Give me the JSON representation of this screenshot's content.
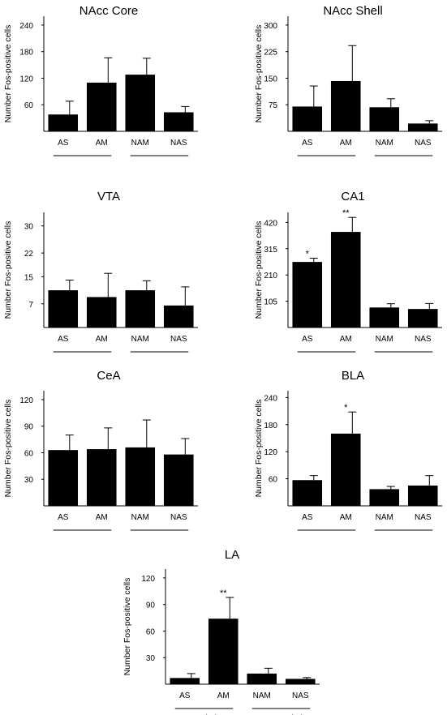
{
  "ylabel": "Number Fos-positive cells",
  "group_labels": [
    "Associative",
    "Non-associative"
  ],
  "chart_data": [
    {
      "type": "bar",
      "title": "NAcc Core",
      "ylabel": "Number Fos-positive cells",
      "categories": [
        "AS",
        "AM",
        "NAM",
        "NAS"
      ],
      "values": [
        38,
        110,
        128,
        43
      ],
      "errors": [
        30,
        56,
        37,
        13
      ],
      "yticks": [
        60,
        120,
        180,
        240
      ],
      "ylim": [
        0,
        260
      ],
      "annotations": [
        "",
        "",
        "",
        ""
      ],
      "grid": false
    },
    {
      "type": "bar",
      "title": "NAcc Shell",
      "ylabel": "Number Fos-positive cells",
      "categories": [
        "AS",
        "AM",
        "NAM",
        "NAS"
      ],
      "values": [
        70,
        142,
        68,
        22
      ],
      "errors": [
        58,
        100,
        24,
        8
      ],
      "yticks": [
        75,
        150,
        225,
        300
      ],
      "ylim": [
        0,
        325
      ],
      "annotations": [
        "",
        "",
        "",
        ""
      ],
      "grid": false
    },
    {
      "type": "bar",
      "title": "VTA",
      "ylabel": "Number Fos-positive cells",
      "categories": [
        "AS",
        "AM",
        "NAM",
        "NAS"
      ],
      "values": [
        11,
        9,
        11,
        6.5
      ],
      "errors": [
        3,
        7,
        2.8,
        5.5
      ],
      "yticks": [
        7,
        15,
        22,
        30
      ],
      "ylim": [
        0,
        34
      ],
      "annotations": [
        "",
        "",
        "",
        ""
      ],
      "grid": false
    },
    {
      "type": "bar",
      "title": "CA1",
      "ylabel": "Number Fos-positive cells",
      "categories": [
        "AS",
        "AM",
        "NAM",
        "NAS"
      ],
      "values": [
        262,
        382,
        80,
        74
      ],
      "errors": [
        15,
        58,
        15,
        22
      ],
      "yticks": [
        105,
        210,
        315,
        420
      ],
      "ylim": [
        0,
        460
      ],
      "annotations": [
        "*",
        "**",
        "",
        ""
      ],
      "grid": false
    },
    {
      "type": "bar",
      "title": "CeA",
      "ylabel": "Number Fos-positive cells",
      "categories": [
        "AS",
        "AM",
        "NAM",
        "NAS"
      ],
      "values": [
        63,
        64,
        66,
        58
      ],
      "errors": [
        17,
        24,
        31,
        18
      ],
      "yticks": [
        30,
        60,
        90,
        120
      ],
      "ylim": [
        0,
        130
      ],
      "annotations": [
        "",
        "",
        "",
        ""
      ],
      "grid": false
    },
    {
      "type": "bar",
      "title": "BLA",
      "ylabel": "Number Fos-positive cells",
      "categories": [
        "AS",
        "AM",
        "NAM",
        "NAS"
      ],
      "values": [
        57,
        160,
        37,
        45
      ],
      "errors": [
        10,
        48,
        6,
        22
      ],
      "yticks": [
        60,
        120,
        180,
        240
      ],
      "ylim": [
        0,
        255
      ],
      "annotations": [
        "",
        "*",
        "",
        ""
      ],
      "grid": false
    },
    {
      "type": "bar",
      "title": "LA",
      "ylabel": "Number Fos-positive cells",
      "categories": [
        "AS",
        "AM",
        "NAM",
        "NAS"
      ],
      "values": [
        7,
        74,
        12,
        6
      ],
      "errors": [
        5,
        24,
        6,
        1.5
      ],
      "yticks": [
        30,
        60,
        90,
        120
      ],
      "ylim": [
        0,
        130
      ],
      "annotations": [
        "",
        "**",
        "",
        ""
      ],
      "grid": false
    }
  ]
}
